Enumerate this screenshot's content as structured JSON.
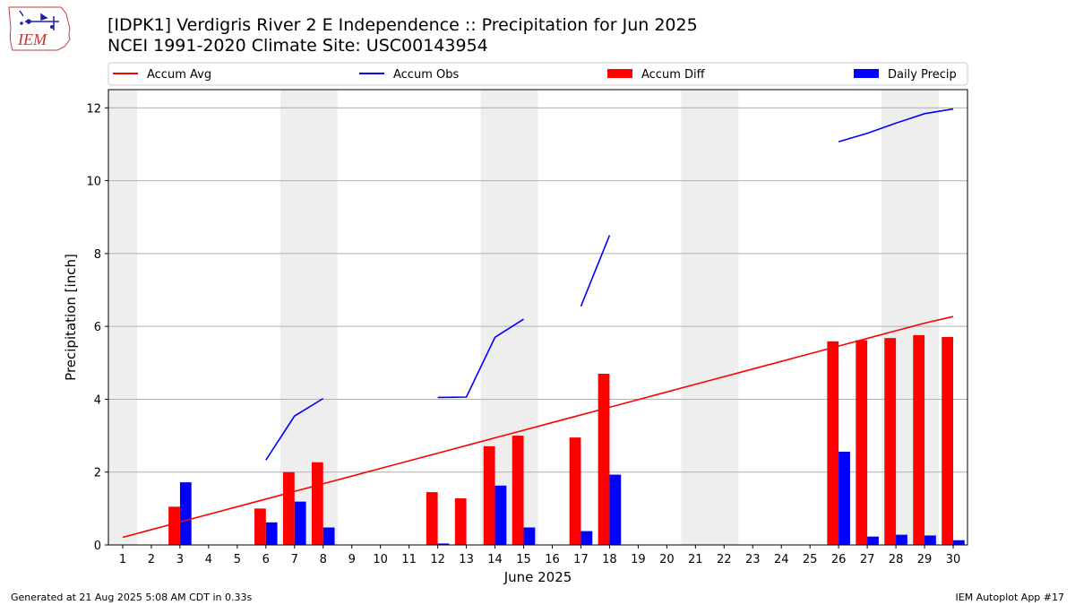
{
  "header": {
    "title": "[IDPK1] Verdigris River 2 E Independence :: Precipitation for Jun 2025",
    "subtitle": "NCEI 1991-2020 Climate Site: USC00143954",
    "logo_text": "IEM"
  },
  "footer": {
    "generated": "Generated at 21 Aug 2025 5:08 AM CDT in 0.33s",
    "app": "IEM Autoplot App #17"
  },
  "colors": {
    "accum_avg": "#ff0000",
    "accum_obs": "#0000ff",
    "accum_diff": "#ff0000",
    "daily_precip": "#0000ff",
    "weekend_shade": "#eeeeee",
    "grid": "#b0b0b0"
  },
  "chart_data": {
    "type": "bar",
    "xlabel": "June 2025",
    "ylabel": "Precipitation [inch]",
    "xlim": [
      0.5,
      30.5
    ],
    "ylim": [
      0,
      12.5
    ],
    "yticks": [
      0,
      2,
      4,
      6,
      8,
      10,
      12
    ],
    "days": [
      1,
      2,
      3,
      4,
      5,
      6,
      7,
      8,
      9,
      10,
      11,
      12,
      13,
      14,
      15,
      16,
      17,
      18,
      19,
      20,
      21,
      22,
      23,
      24,
      25,
      26,
      27,
      28,
      29,
      30
    ],
    "grid": "horizontal",
    "legend_position": "top",
    "weekend_days": [
      1,
      7,
      8,
      14,
      15,
      21,
      22,
      28,
      29
    ],
    "series": [
      {
        "name": "Accum Avg",
        "kind": "line",
        "values": [
          0.21,
          0.42,
          0.63,
          0.84,
          1.05,
          1.26,
          1.47,
          1.68,
          1.89,
          2.1,
          2.31,
          2.52,
          2.73,
          2.94,
          3.15,
          3.36,
          3.57,
          3.78,
          3.99,
          4.2,
          4.41,
          4.62,
          4.83,
          5.04,
          5.25,
          5.46,
          5.67,
          5.88,
          6.09,
          6.27
        ]
      },
      {
        "name": "Accum Obs",
        "kind": "line",
        "values": [
          null,
          null,
          null,
          null,
          null,
          2.33,
          3.54,
          4.02,
          null,
          null,
          null,
          4.05,
          4.06,
          5.7,
          6.2,
          null,
          6.55,
          8.5,
          null,
          null,
          null,
          null,
          null,
          null,
          null,
          11.07,
          11.3,
          11.58,
          11.84,
          11.97
        ]
      },
      {
        "name": "Accum Diff",
        "kind": "bar",
        "values": [
          0,
          0,
          1.05,
          0,
          0,
          1.0,
          2.0,
          2.27,
          0,
          0,
          0,
          1.45,
          1.28,
          2.71,
          3.0,
          0,
          2.95,
          4.7,
          0,
          0,
          0,
          0,
          0,
          0,
          0,
          5.59,
          5.62,
          5.68,
          5.76,
          5.71
        ]
      },
      {
        "name": "Daily Precip",
        "kind": "bar",
        "values": [
          0,
          0,
          1.72,
          0,
          0,
          0.62,
          1.19,
          0.48,
          0,
          0,
          0,
          0.04,
          0.01,
          1.63,
          0.48,
          0,
          0.38,
          1.93,
          0,
          0,
          0,
          0,
          0,
          0,
          0,
          2.56,
          0.23,
          0.28,
          0.26,
          0.13
        ]
      }
    ]
  }
}
